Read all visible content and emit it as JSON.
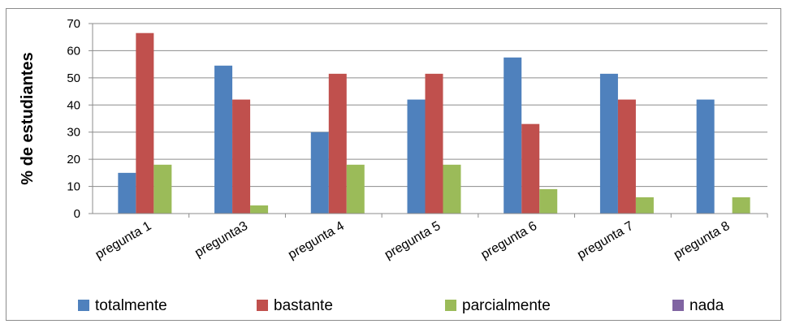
{
  "chart_data": {
    "type": "bar",
    "title": "",
    "xlabel": "",
    "ylabel": "% de estudiantes",
    "ylim": [
      0,
      70
    ],
    "yticks": [
      0,
      10,
      20,
      30,
      40,
      50,
      60,
      70
    ],
    "grid": true,
    "legend_position": "bottom",
    "categories": [
      "pregunta 1",
      "pregunta3",
      "pregunta 4",
      "pregunta 5",
      "pregunta 6",
      "pregunta 7",
      "pregunta 8"
    ],
    "series": [
      {
        "name": "totalmente",
        "color": "#4f81bd",
        "values": [
          15,
          54.5,
          30,
          42,
          57.5,
          51.5,
          42
        ]
      },
      {
        "name": "bastante",
        "color": "#c0504d",
        "values": [
          66.5,
          42,
          51.5,
          51.5,
          33,
          42,
          0
        ]
      },
      {
        "name": "parcialmente",
        "color": "#9bbb59",
        "values": [
          18,
          3,
          18,
          18,
          9,
          6,
          6
        ]
      },
      {
        "name": "nada",
        "color": "#8064a2",
        "values": [
          0,
          0,
          0,
          0,
          0,
          0,
          0
        ]
      }
    ]
  }
}
